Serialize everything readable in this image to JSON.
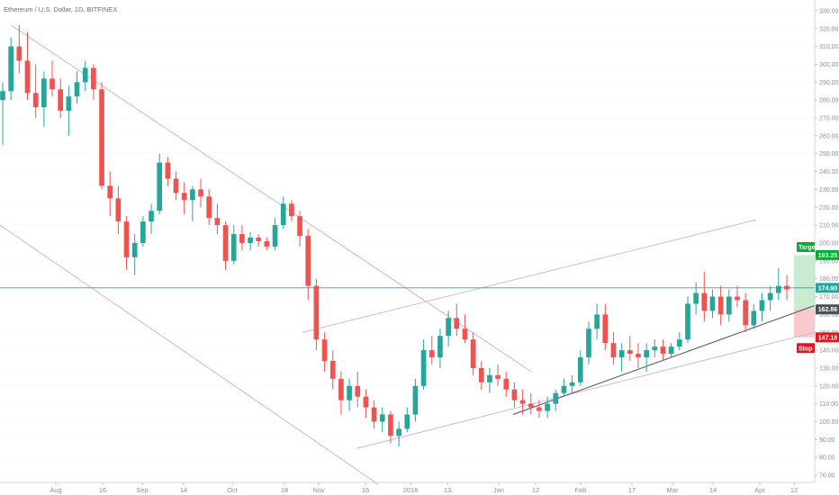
{
  "header": {
    "title": "Ethereum / U.S. Dollar, 1D, BITFINEX"
  },
  "colors": {
    "up": "#26a69a",
    "down": "#ef5350",
    "grid": "#e6e7ea",
    "trendline": "#c9b0cf",
    "support": "#555a63",
    "price_line": "#26a69a",
    "target_zone": "#bfe8c8",
    "stop_zone": "#f8c0c3",
    "target_badge": "#0fa83a",
    "stop_badge": "#e01820",
    "current_badge": "#26a69a",
    "entry_badge": "#4a4f58"
  },
  "chart_data": {
    "type": "candlestick",
    "title": "Ethereum / U.S. Dollar, 1D, BITFINEX",
    "ylim": [
      65,
      335
    ],
    "y_ticks": [
      70,
      80,
      90,
      100,
      110,
      120,
      130,
      140,
      150,
      160,
      170,
      180,
      190,
      200,
      210,
      220,
      230,
      240,
      250,
      260,
      270,
      280,
      290,
      300,
      310,
      320,
      330
    ],
    "y_tick_labels": [
      "70.00",
      "80.00",
      "90.00",
      "100.00",
      "110.00",
      "120.00",
      "130.00",
      "140.00",
      "150.00",
      "160.00",
      "170.00",
      "180.00",
      "190.00",
      "200.00",
      "210.00",
      "220.00",
      "230.00",
      "240.00",
      "250.00",
      "260.00",
      "270.00",
      "280.00",
      "290.00",
      "300.00",
      "310.00",
      "320.00",
      "330.00"
    ],
    "x_ticks": [
      "Aug",
      "16",
      "Sep",
      "14",
      "Oct",
      "18",
      "Nov",
      "16",
      "2018",
      "13",
      "Jan",
      "12",
      "Feb",
      "17",
      "Mar",
      "14",
      "Apr",
      "12"
    ],
    "levels": {
      "current": {
        "value": 174.9,
        "label": "174.90"
      },
      "entry": {
        "value": 162.86,
        "label": "162.86"
      },
      "target": {
        "value": 193.25,
        "label": "193.25",
        "name": "Target"
      },
      "stop": {
        "value": 147.18,
        "label": "147.18",
        "name": "Stop"
      }
    },
    "candles": [
      [
        280,
        290,
        255,
        285
      ],
      [
        285,
        315,
        280,
        310
      ],
      [
        310,
        322,
        295,
        302
      ],
      [
        302,
        318,
        280,
        284
      ],
      [
        284,
        300,
        270,
        276
      ],
      [
        276,
        296,
        265,
        292
      ],
      [
        292,
        302,
        282,
        286
      ],
      [
        286,
        292,
        270,
        274
      ],
      [
        274,
        288,
        260,
        282
      ],
      [
        282,
        296,
        278,
        290
      ],
      [
        290,
        302,
        285,
        298
      ],
      [
        298,
        300,
        280,
        286
      ],
      [
        286,
        290,
        230,
        232
      ],
      [
        232,
        240,
        215,
        225
      ],
      [
        225,
        232,
        205,
        212
      ],
      [
        212,
        215,
        185,
        192
      ],
      [
        192,
        205,
        182,
        200
      ],
      [
        200,
        215,
        198,
        212
      ],
      [
        212,
        222,
        205,
        218
      ],
      [
        218,
        250,
        216,
        245
      ],
      [
        245,
        248,
        232,
        236
      ],
      [
        236,
        240,
        224,
        228
      ],
      [
        228,
        234,
        216,
        224
      ],
      [
        224,
        232,
        212,
        230
      ],
      [
        230,
        236,
        220,
        226
      ],
      [
        226,
        230,
        210,
        214
      ],
      [
        214,
        222,
        205,
        210
      ],
      [
        210,
        212,
        185,
        190
      ],
      [
        190,
        210,
        188,
        205
      ],
      [
        205,
        210,
        196,
        200
      ],
      [
        200,
        206,
        196,
        203
      ],
      [
        203,
        205,
        198,
        201
      ],
      [
        201,
        203,
        196,
        198
      ],
      [
        198,
        214,
        196,
        210
      ],
      [
        210,
        226,
        208,
        222
      ],
      [
        222,
        224,
        212,
        215
      ],
      [
        215,
        218,
        198,
        204
      ],
      [
        204,
        208,
        168,
        176
      ],
      [
        176,
        180,
        140,
        146
      ],
      [
        146,
        150,
        128,
        134
      ],
      [
        134,
        140,
        118,
        124
      ],
      [
        124,
        128,
        104,
        112
      ],
      [
        112,
        124,
        106,
        120
      ],
      [
        120,
        128,
        108,
        114
      ],
      [
        114,
        118,
        102,
        108
      ],
      [
        108,
        112,
        96,
        100
      ],
      [
        100,
        108,
        94,
        104
      ],
      [
        104,
        106,
        88,
        92
      ],
      [
        92,
        100,
        86,
        96
      ],
      [
        96,
        108,
        94,
        104
      ],
      [
        104,
        124,
        100,
        120
      ],
      [
        120,
        146,
        118,
        140
      ],
      [
        140,
        148,
        132,
        136
      ],
      [
        136,
        152,
        130,
        148
      ],
      [
        148,
        162,
        142,
        158
      ],
      [
        158,
        166,
        148,
        152
      ],
      [
        152,
        160,
        144,
        146
      ],
      [
        146,
        150,
        126,
        130
      ],
      [
        130,
        134,
        118,
        122
      ],
      [
        122,
        130,
        116,
        126
      ],
      [
        126,
        132,
        120,
        124
      ],
      [
        124,
        128,
        114,
        118
      ],
      [
        118,
        122,
        108,
        112
      ],
      [
        112,
        118,
        104,
        110
      ],
      [
        110,
        116,
        104,
        108
      ],
      [
        108,
        112,
        102,
        106
      ],
      [
        106,
        114,
        102,
        110
      ],
      [
        110,
        118,
        106,
        116
      ],
      [
        116,
        124,
        114,
        120
      ],
      [
        120,
        126,
        116,
        122
      ],
      [
        122,
        140,
        120,
        136
      ],
      [
        136,
        156,
        132,
        152
      ],
      [
        152,
        166,
        146,
        160
      ],
      [
        160,
        166,
        140,
        144
      ],
      [
        144,
        150,
        132,
        136
      ],
      [
        136,
        144,
        128,
        140
      ],
      [
        140,
        148,
        134,
        138
      ],
      [
        138,
        144,
        130,
        136
      ],
      [
        136,
        144,
        128,
        140
      ],
      [
        140,
        146,
        136,
        142
      ],
      [
        142,
        146,
        134,
        138
      ],
      [
        138,
        144,
        136,
        142
      ],
      [
        142,
        150,
        140,
        146
      ],
      [
        146,
        170,
        144,
        166
      ],
      [
        166,
        178,
        160,
        172
      ],
      [
        172,
        184,
        156,
        162
      ],
      [
        162,
        174,
        158,
        170
      ],
      [
        170,
        176,
        154,
        160
      ],
      [
        160,
        174,
        156,
        170
      ],
      [
        170,
        176,
        164,
        168
      ],
      [
        168,
        172,
        150,
        154
      ],
      [
        154,
        166,
        152,
        162
      ],
      [
        162,
        172,
        156,
        168
      ],
      [
        168,
        176,
        162,
        172
      ],
      [
        172,
        186,
        168,
        176
      ],
      [
        176,
        182,
        168,
        174
      ]
    ]
  }
}
